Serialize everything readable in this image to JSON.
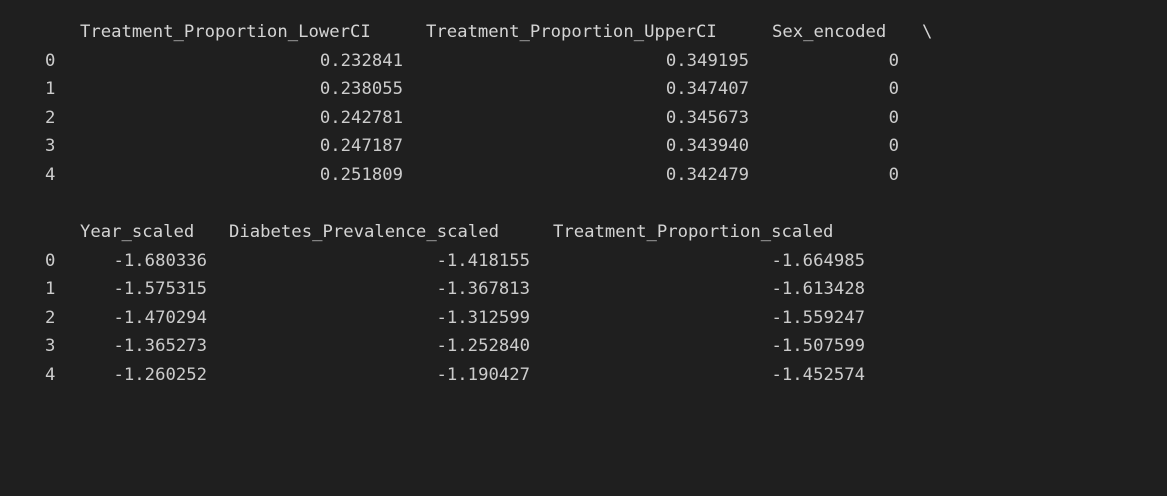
{
  "block1": {
    "headers": [
      "Treatment_Proportion_LowerCI",
      "Treatment_Proportion_UpperCI",
      "Sex_encoded"
    ],
    "continuation": "\\",
    "rows": [
      {
        "index": "0",
        "c1": "0.232841",
        "c2": "0.349195",
        "c3": "0"
      },
      {
        "index": "1",
        "c1": "0.238055",
        "c2": "0.347407",
        "c3": "0"
      },
      {
        "index": "2",
        "c1": "0.242781",
        "c2": "0.345673",
        "c3": "0"
      },
      {
        "index": "3",
        "c1": "0.247187",
        "c2": "0.343940",
        "c3": "0"
      },
      {
        "index": "4",
        "c1": "0.251809",
        "c2": "0.342479",
        "c3": "0"
      }
    ]
  },
  "block2": {
    "headers": [
      "Year_scaled",
      "Diabetes_Prevalence_scaled",
      "Treatment_Proportion_scaled"
    ],
    "rows": [
      {
        "index": "0",
        "c1": "-1.680336",
        "c2": "-1.418155",
        "c3": "-1.664985"
      },
      {
        "index": "1",
        "c1": "-1.575315",
        "c2": "-1.367813",
        "c3": "-1.613428"
      },
      {
        "index": "2",
        "c1": "-1.470294",
        "c2": "-1.312599",
        "c3": "-1.559247"
      },
      {
        "index": "3",
        "c1": "-1.365273",
        "c2": "-1.252840",
        "c3": "-1.507599"
      },
      {
        "index": "4",
        "c1": "-1.260252",
        "c2": "-1.190427",
        "c3": "-1.452574"
      }
    ]
  }
}
